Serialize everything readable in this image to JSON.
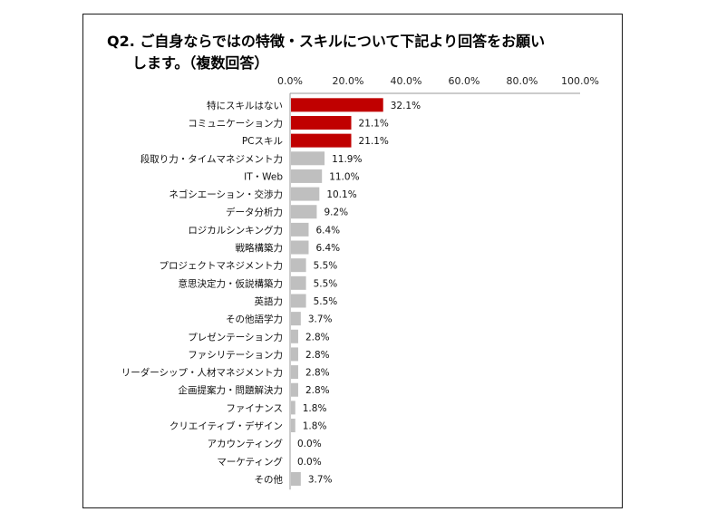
{
  "title": {
    "line1": "Q2. ご自身ならではの特徴・スキルについて下記より回答をお願い",
    "line2": "します。（複数回答）"
  },
  "colors": {
    "highlight": "#c00000",
    "normal": "#bfbfbf"
  },
  "chart_data": {
    "type": "bar",
    "orientation": "horizontal",
    "categories": [
      "特にスキルはない",
      "コミュニケーション力",
      "PCスキル",
      "段取り力・タイムマネジメント力",
      "IT・Web",
      "ネゴシエーション・交渉力",
      "データ分析力",
      "ロジカルシンキング力",
      "戦略構築力",
      "プロジェクトマネジメント力",
      "意思決定力・仮説構築力",
      "英語力",
      "その他語学力",
      "プレゼンテーション力",
      "ファシリテーション力",
      "リーダーシップ・人材マネジメント力",
      "企画提案力・問題解決力",
      "ファイナンス",
      "クリエイティブ・デザイン",
      "アカウンティング",
      "マーケティング",
      "その他"
    ],
    "values": [
      32.1,
      21.1,
      21.1,
      11.9,
      11.0,
      10.1,
      9.2,
      6.4,
      6.4,
      5.5,
      5.5,
      5.5,
      3.7,
      2.8,
      2.8,
      2.8,
      2.8,
      1.8,
      1.8,
      0.0,
      0.0,
      3.7
    ],
    "value_labels": [
      "32.1%",
      "21.1%",
      "21.1%",
      "11.9%",
      "11.0%",
      "10.1%",
      "9.2%",
      "6.4%",
      "6.4%",
      "5.5%",
      "5.5%",
      "5.5%",
      "3.7%",
      "2.8%",
      "2.8%",
      "2.8%",
      "2.8%",
      "1.8%",
      "1.8%",
      "0.0%",
      "0.0%",
      "3.7%"
    ],
    "highlighted": [
      true,
      true,
      true,
      false,
      false,
      false,
      false,
      false,
      false,
      false,
      false,
      false,
      false,
      false,
      false,
      false,
      false,
      false,
      false,
      false,
      false,
      false
    ],
    "xticks": [
      0,
      20,
      40,
      60,
      80,
      100
    ],
    "xtick_labels": [
      "0.0%",
      "20.0%",
      "40.0%",
      "60.0%",
      "80.0%",
      "100.0%"
    ],
    "xlim": [
      0,
      100
    ],
    "xaxis_position": "top",
    "grid": false,
    "legend": "none"
  }
}
